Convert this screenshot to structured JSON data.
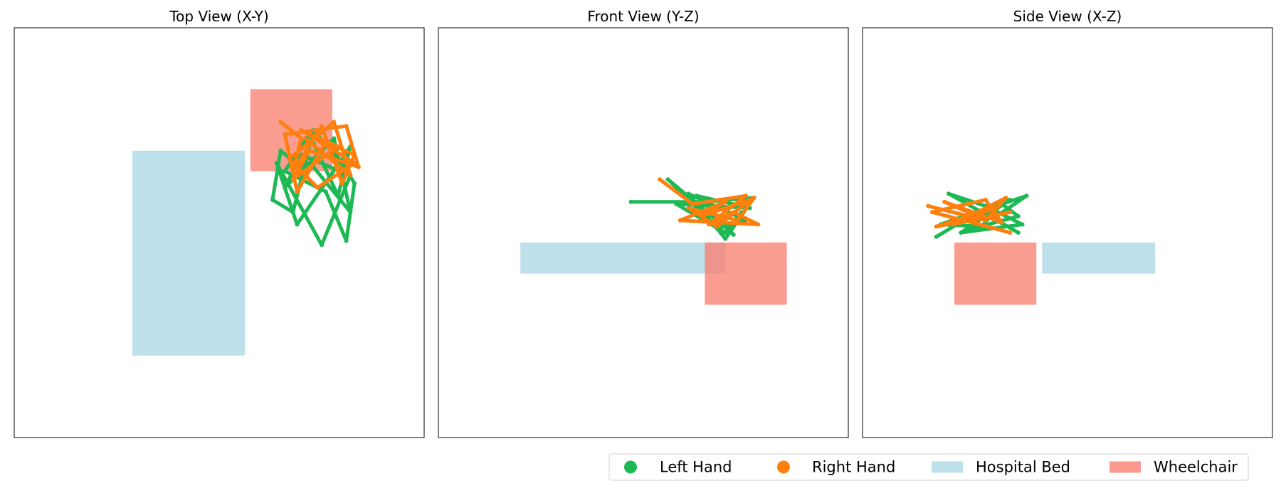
{
  "chart_data": [
    {
      "type": "line",
      "title": "Top View (X-Y)",
      "xlabel": "",
      "ylabel": "",
      "xlim": [
        0,
        100
      ],
      "ylim": [
        0,
        100
      ],
      "grid": false,
      "objects": [
        {
          "name": "Hospital Bed",
          "x0": 28.8,
          "x1": 56.3,
          "y0": 20.0,
          "y1": 70.0
        },
        {
          "name": "Wheelchair",
          "x0": 57.6,
          "x1": 77.6,
          "y0": 65.0,
          "y1": 85.0
        }
      ],
      "series": [
        {
          "name": "Left Hand",
          "x": [
            71,
            65,
            63,
            68,
            73,
            80,
            83,
            81,
            76,
            66,
            72,
            79,
            82,
            69,
            64,
            75,
            82,
            70,
            66,
            78,
            82,
            73
          ],
          "y": [
            65,
            70,
            58,
            55,
            75,
            67,
            62,
            48,
            60,
            65,
            74,
            59,
            71,
            52,
            67,
            47,
            64,
            69,
            61,
            73,
            55,
            66
          ]
        },
        {
          "name": "Right Hand",
          "x": [
            65,
            70,
            68,
            75,
            80,
            83,
            76,
            69,
            66,
            81,
            84,
            72,
            68,
            79,
            70,
            83,
            74,
            67,
            78,
            82,
            71
          ],
          "y": [
            77,
            73,
            65,
            76,
            62,
            69,
            72,
            60,
            74,
            76,
            66,
            70,
            63,
            71,
            75,
            67,
            61,
            68,
            77,
            64,
            73
          ]
        }
      ]
    },
    {
      "type": "line",
      "title": "Front View (Y-Z)",
      "xlabel": "",
      "ylabel": "",
      "xlim": [
        0,
        100
      ],
      "ylim": [
        0,
        100
      ],
      "grid": false,
      "objects": [
        {
          "name": "Hospital Bed",
          "x0": 20.0,
          "x1": 70.0,
          "y0": 40.0,
          "y1": 47.6
        },
        {
          "name": "Wheelchair",
          "x0": 65.0,
          "x1": 85.0,
          "y0": 32.4,
          "y1": 47.6
        }
      ],
      "series": [
        {
          "name": "Left Hand",
          "x": [
            47,
            65,
            77,
            70,
            61,
            75,
            68,
            56,
            72,
            63,
            76,
            58,
            70,
            74
          ],
          "y": [
            57.5,
            57.5,
            58.5,
            48.5,
            59.5,
            53.0,
            51.0,
            63.0,
            49.5,
            59.0,
            56.0,
            57.0,
            50.0,
            55.0
          ]
        },
        {
          "name": "Right Hand",
          "x": [
            54,
            62,
            75,
            66,
            72,
            78,
            59,
            70,
            64,
            76,
            68,
            61,
            73,
            77
          ],
          "y": [
            63.0,
            57.0,
            59.0,
            52.0,
            55.0,
            52.0,
            53.0,
            57.5,
            54.0,
            58.0,
            51.5,
            56.0,
            53.0,
            58.5
          ]
        }
      ]
    },
    {
      "type": "line",
      "title": "Side View (X-Z)",
      "xlabel": "",
      "ylabel": "",
      "xlim": [
        0,
        100
      ],
      "ylim": [
        0,
        100
      ],
      "grid": false,
      "objects": [
        {
          "name": "Hospital Bed",
          "x0": 43.8,
          "x1": 71.4,
          "y0": 40.0,
          "y1": 47.6
        },
        {
          "name": "Wheelchair",
          "x0": 22.4,
          "x1": 42.4,
          "y0": 32.4,
          "y1": 47.6
        }
      ],
      "series": [
        {
          "name": "Left Hand",
          "x": [
            18,
            28,
            40,
            32,
            38,
            21,
            30,
            39,
            24,
            36,
            19,
            29,
            34,
            38,
            25
          ],
          "y": [
            49.0,
            55.0,
            59.0,
            53.5,
            50.0,
            59.5,
            56.5,
            52.0,
            50.0,
            58.0,
            52.0,
            51.5,
            57.0,
            54.0,
            50.5
          ]
        },
        {
          "name": "Right Hand",
          "x": [
            16,
            30,
            35,
            22,
            36,
            18,
            32,
            25,
            36,
            17,
            30,
            34,
            20,
            28
          ],
          "y": [
            56.5,
            53.0,
            58.5,
            52.0,
            55.0,
            51.5,
            56.0,
            53.0,
            50.0,
            55.0,
            58.0,
            52.5,
            57.5,
            54.0
          ]
        }
      ]
    }
  ],
  "legend": {
    "placement": "bottom-right",
    "items": [
      {
        "label": "Left Hand",
        "kind": "marker",
        "color": "#1db954"
      },
      {
        "label": "Right Hand",
        "kind": "marker",
        "color": "#ff7f0e"
      },
      {
        "label": "Hospital Bed",
        "kind": "patch",
        "color": "#add8e6"
      },
      {
        "label": "Wheelchair",
        "kind": "patch",
        "color": "#fa8072"
      }
    ]
  },
  "colors": {
    "left_hand": "#1db954",
    "right_hand": "#ff7f0e",
    "hospital_bed": "#add8e6",
    "wheelchair": "#fa8072"
  }
}
